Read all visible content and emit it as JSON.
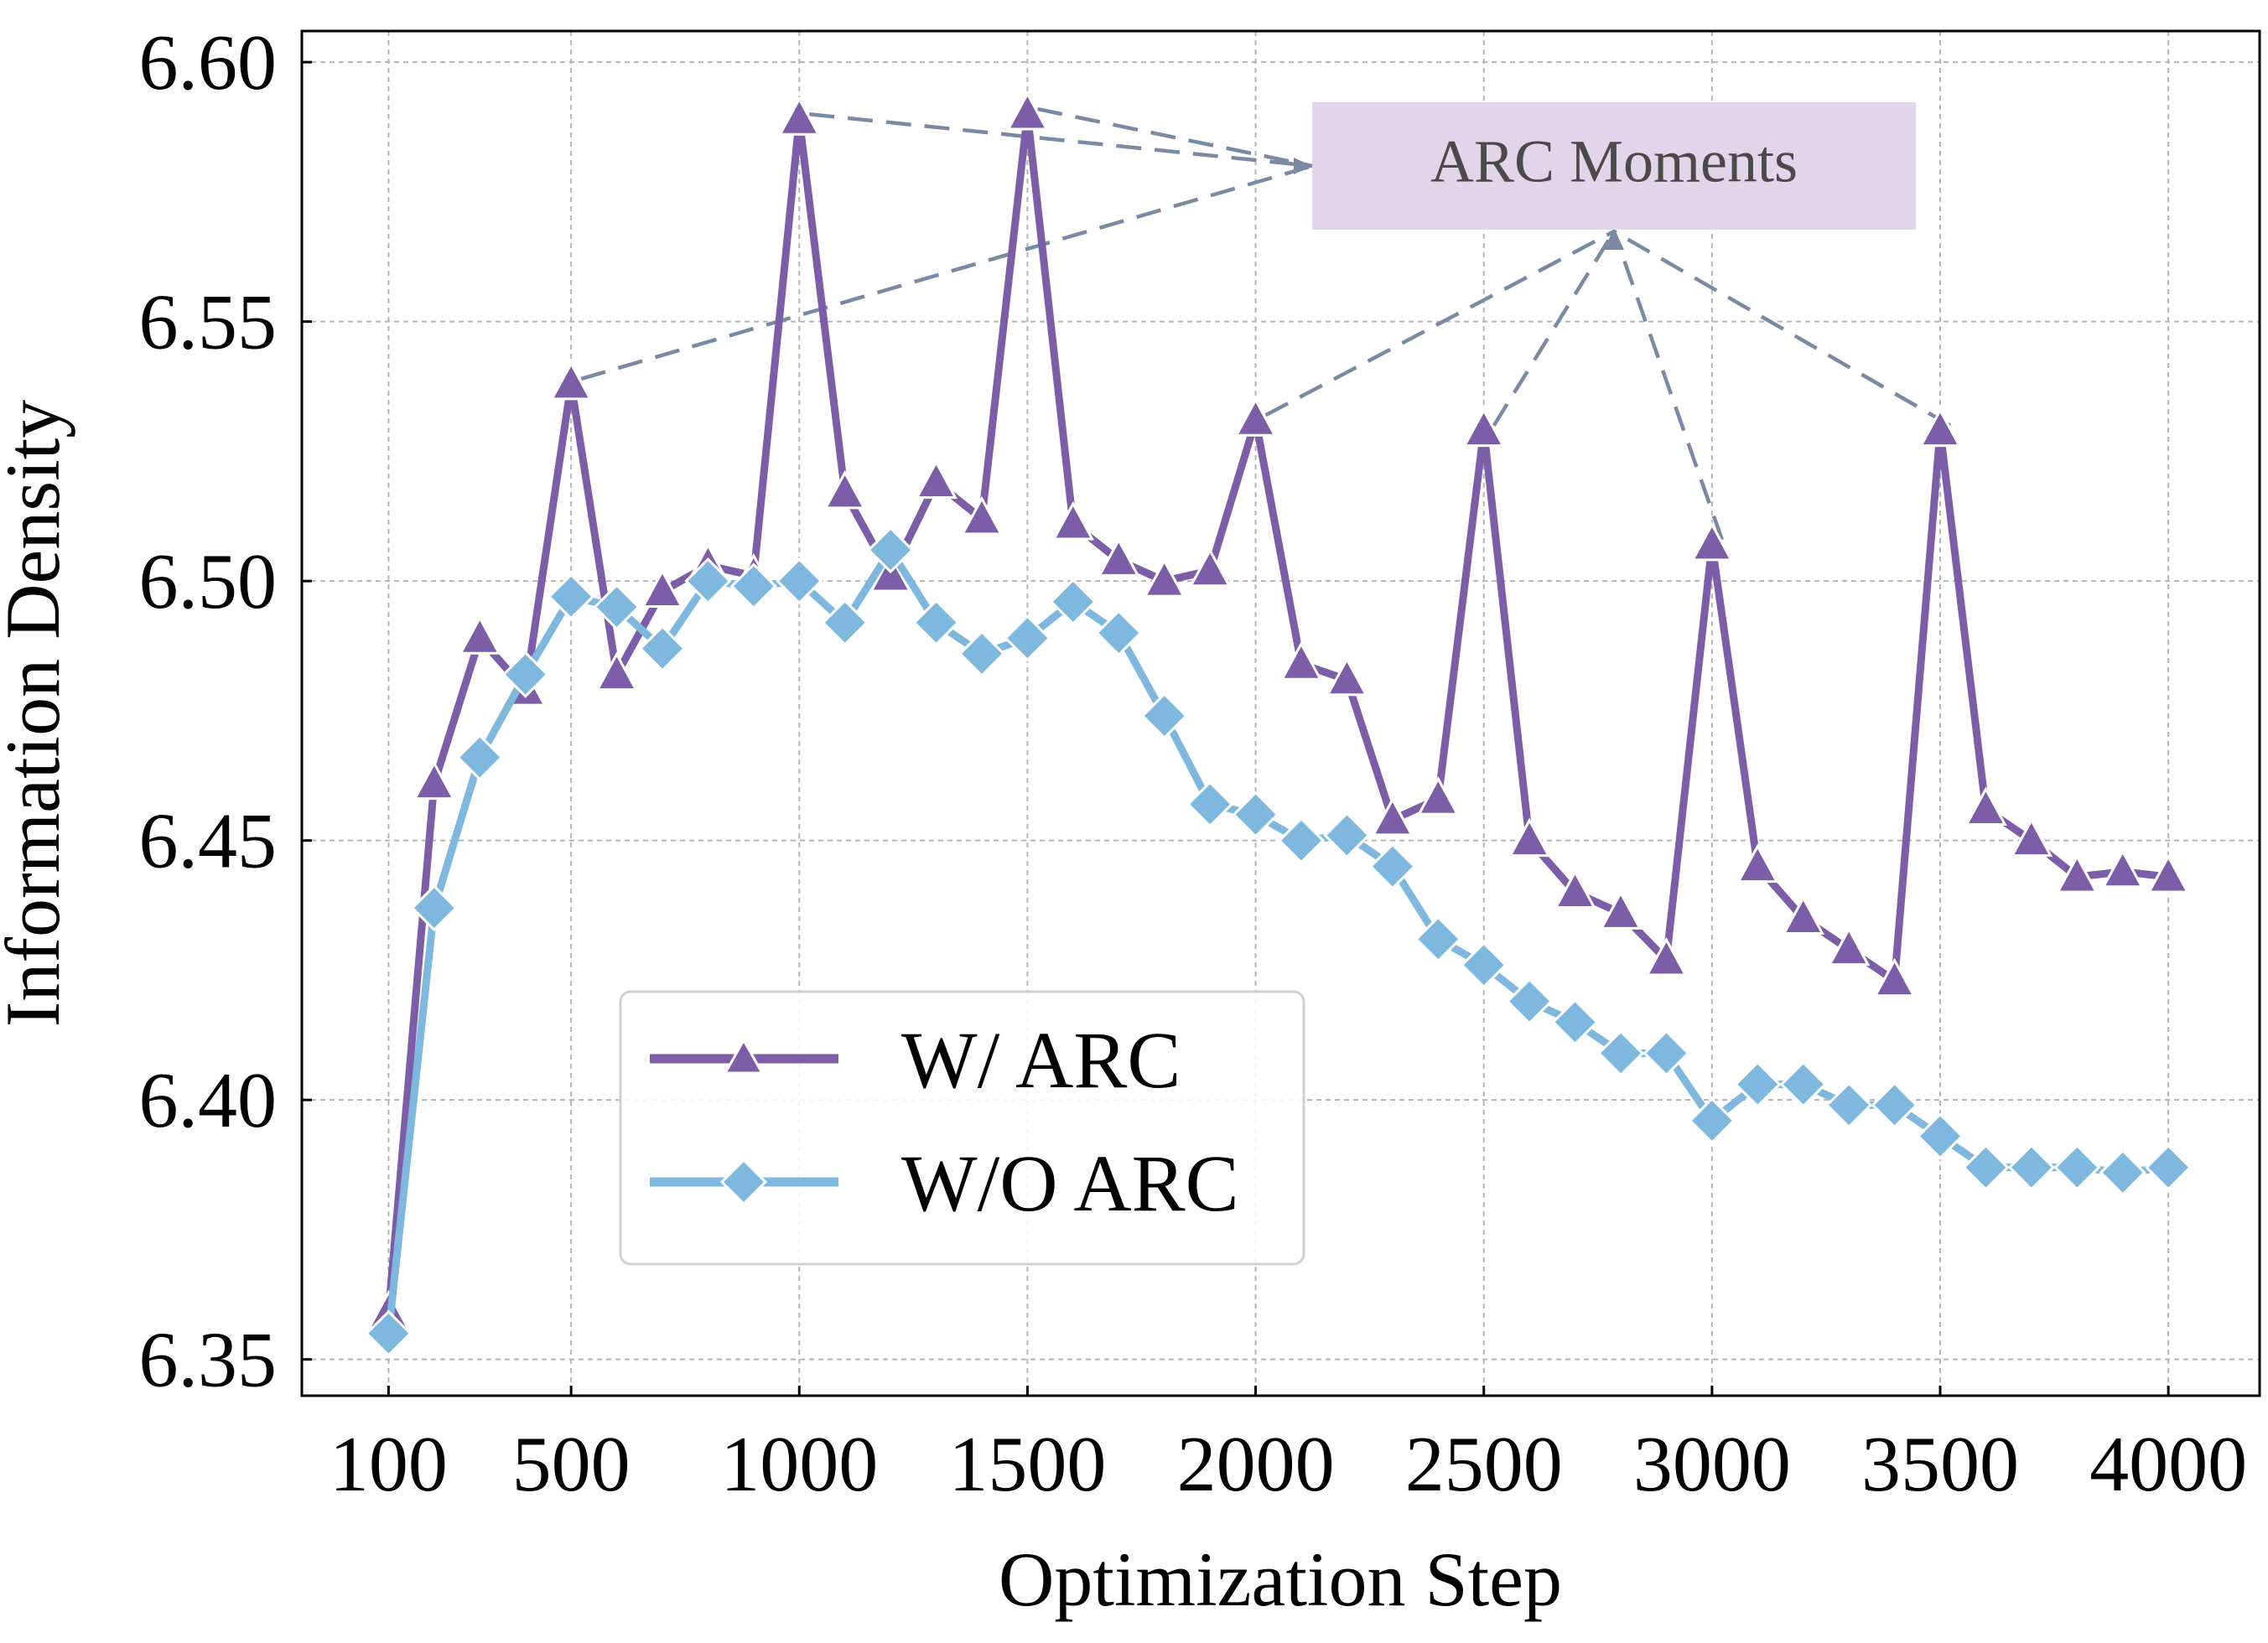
{
  "chart_data": {
    "type": "line",
    "xlabel": "Optimization Step",
    "ylabel": "Information Density",
    "x_tick_labels": [
      "100",
      "500",
      "1000",
      "1500",
      "2000",
      "2500",
      "3000",
      "3500",
      "4000"
    ],
    "y_tick_labels": [
      "6.35",
      "6.40",
      "6.45",
      "6.50",
      "6.55",
      "6.60"
    ],
    "x_ticks": [
      100,
      500,
      1000,
      1500,
      2000,
      2500,
      3000,
      3500,
      4000
    ],
    "y_ticks": [
      6.35,
      6.4,
      6.45,
      6.5,
      6.55,
      6.6
    ],
    "xlim": [
      -90,
      4200
    ],
    "ylim": [
      6.343,
      6.606
    ],
    "grid": true,
    "legend_position": "lower-left",
    "x": [
      100,
      200,
      300,
      400,
      500,
      600,
      700,
      800,
      900,
      1000,
      1100,
      1200,
      1300,
      1400,
      1500,
      1600,
      1700,
      1800,
      1900,
      2000,
      2100,
      2200,
      2300,
      2400,
      2500,
      2600,
      2700,
      2800,
      2900,
      3000,
      3100,
      3200,
      3300,
      3400,
      3500,
      3600,
      3700,
      3800,
      3900,
      4000
    ],
    "series": [
      {
        "name": "W/ ARC",
        "color": "#7b5ea7",
        "marker": "triangle",
        "values": [
          6.359,
          6.461,
          6.489,
          6.479,
          6.538,
          6.482,
          6.498,
          6.503,
          6.501,
          6.589,
          6.517,
          6.501,
          6.519,
          6.512,
          6.59,
          6.511,
          6.504,
          6.5,
          6.502,
          6.531,
          6.484,
          6.481,
          6.454,
          6.458,
          6.529,
          6.45,
          6.44,
          6.436,
          6.427,
          6.507,
          6.445,
          6.435,
          6.429,
          6.423,
          6.529,
          6.456,
          6.45,
          6.443,
          6.444,
          6.443
        ]
      },
      {
        "name": "W/O ARC",
        "color": "#7fb8de",
        "marker": "diamond",
        "values": [
          6.355,
          6.437,
          6.466,
          6.482,
          6.497,
          6.495,
          6.487,
          6.5,
          6.499,
          6.5,
          6.492,
          6.506,
          6.492,
          6.486,
          6.489,
          6.496,
          6.49,
          6.474,
          6.457,
          6.455,
          6.45,
          6.451,
          6.445,
          6.431,
          6.426,
          6.419,
          6.415,
          6.409,
          6.409,
          6.396,
          6.403,
          6.403,
          6.399,
          6.399,
          6.393,
          6.387,
          6.387,
          6.387,
          6.386,
          6.387
        ]
      }
    ],
    "annotation": {
      "text": "ARC Moments",
      "box_color": "#e1d5ea",
      "arrow_color": "#7a8aa3",
      "targets_x": [
        500,
        1000,
        1500,
        2000,
        2500,
        3000,
        3500
      ]
    }
  }
}
